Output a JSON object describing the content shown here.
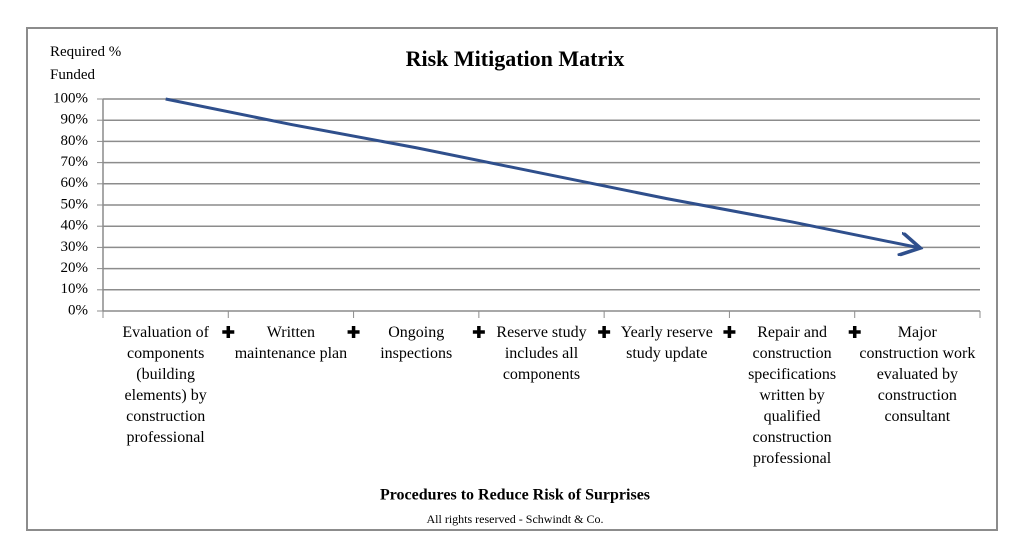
{
  "chart_data": {
    "type": "line",
    "title": "Risk Mitigation Matrix",
    "y_label": "Required % Funded",
    "x_label": "Procedures to Reduce Risk of Surprises",
    "footnote": "All rights reserved - Schwindt & Co.",
    "categories": [
      "Evaluation of components (building elements) by construction professional",
      "Written maintenance plan",
      "Ongoing inspections",
      "Reserve study includes all components",
      "Yearly reserve study update",
      "Repair and construction specifications written by qualified construction professional",
      "Major construction work evaluated by construction consultant"
    ],
    "series": [
      {
        "name": "Required % Funded",
        "color": "#2f4f8c",
        "values": [
          100,
          88,
          77,
          65,
          53,
          42,
          30
        ]
      }
    ],
    "ylim": [
      0,
      100
    ],
    "yticks": [
      {
        "value": 0,
        "label": "0%"
      },
      {
        "value": 10,
        "label": "10%"
      },
      {
        "value": 20,
        "label": "20%"
      },
      {
        "value": 30,
        "label": "30%"
      },
      {
        "value": 40,
        "label": "40%"
      },
      {
        "value": 50,
        "label": "50%"
      },
      {
        "value": 60,
        "label": "60%"
      },
      {
        "value": 70,
        "label": "70%"
      },
      {
        "value": 80,
        "label": "80%"
      },
      {
        "value": 90,
        "label": "90%"
      },
      {
        "value": 100,
        "label": "100%"
      }
    ],
    "grid": true
  }
}
